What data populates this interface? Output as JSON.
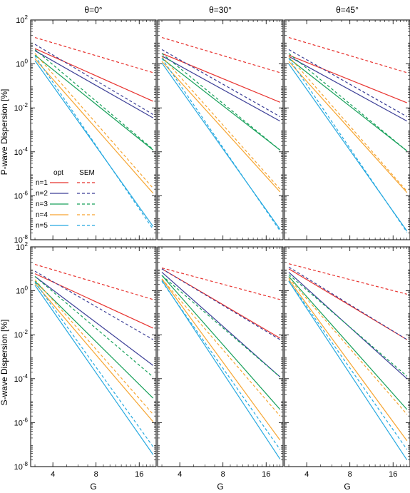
{
  "chart_data": {
    "type": "line",
    "scale": {
      "x": "log",
      "y": "log"
    },
    "xlim": [
      2.8,
      21
    ],
    "ylim": [
      1e-08,
      100
    ],
    "x_ticks": [
      4,
      8,
      16
    ],
    "x_tick_labels": [
      "4",
      "8",
      "16"
    ],
    "y_ticks": [
      {
        "value": 100,
        "base": "10",
        "exp": "2"
      },
      {
        "value": 1,
        "base": "10",
        "exp": "0"
      },
      {
        "value": 0.01,
        "base": "10",
        "exp": "-2"
      },
      {
        "value": 0.0001,
        "base": "10",
        "exp": "-4"
      },
      {
        "value": 1e-06,
        "base": "10",
        "exp": "-6"
      },
      {
        "value": 1e-08,
        "base": "10",
        "exp": "-8"
      }
    ],
    "column_titles": [
      "θ=0°",
      "θ=30°",
      "θ=45°"
    ],
    "row_ylabels": [
      "P-wave Dispersion [%]",
      "S-wave Dispersion [%]"
    ],
    "xlabel": "G",
    "legend": {
      "placement": "lower-left of top-left panel",
      "headers": [
        "opt",
        "SEM"
      ],
      "rows": [
        "n=1",
        "n=2",
        "n=3",
        "n=4",
        "n=5"
      ]
    },
    "series_colors": [
      "#e8332f",
      "#3c3f97",
      "#17a05a",
      "#f6a531",
      "#26a9e0"
    ],
    "x_endpoints": [
      3,
      20
    ],
    "panels": [
      {
        "row": 0,
        "col": 0,
        "opt": [
          [
            5,
            0.02
          ],
          [
            4,
            0.0035
          ],
          [
            2.5,
            0.00012
          ],
          [
            1.7,
            1.3e-06
          ],
          [
            1.4,
            4e-08
          ]
        ],
        "sem": [
          [
            16,
            0.4
          ],
          [
            7.8,
            0.005
          ],
          [
            4.5,
            0.00013
          ],
          [
            3,
            2.2e-06
          ],
          [
            2.3,
            3e-08
          ]
        ]
      },
      {
        "row": 0,
        "col": 1,
        "opt": [
          [
            3,
            0.018
          ],
          [
            2.3,
            0.0025
          ],
          [
            1.8,
            0.00012
          ],
          [
            1.3,
            1.5e-06
          ],
          [
            1.1,
            3e-08
          ]
        ],
        "sem": [
          [
            16,
            0.4
          ],
          [
            4.5,
            0.004
          ],
          [
            3,
            0.00012
          ],
          [
            2.2,
            2e-06
          ],
          [
            1.8,
            2.5e-08
          ]
        ]
      },
      {
        "row": 0,
        "col": 2,
        "opt": [
          [
            2.5,
            0.017
          ],
          [
            2.2,
            0.0025
          ],
          [
            1.8,
            0.00011
          ],
          [
            1.3,
            1.4e-06
          ],
          [
            1,
            2.5e-08
          ]
        ],
        "sem": [
          [
            16,
            0.4
          ],
          [
            4.5,
            0.004
          ],
          [
            3,
            0.00011
          ],
          [
            2.2,
            1.6e-06
          ],
          [
            1.8,
            2.2e-08
          ]
        ]
      },
      {
        "row": 1,
        "col": 0,
        "opt": [
          [
            6,
            0.02
          ],
          [
            4.5,
            0.0004
          ],
          [
            2.7,
            1.3e-05
          ],
          [
            2.2,
            1.1e-06
          ],
          [
            1.8,
            3.5e-08
          ]
        ],
        "sem": [
          [
            16,
            0.4
          ],
          [
            7.8,
            0.006
          ],
          [
            4.5,
            0.00012
          ],
          [
            3.2,
            2.4e-06
          ],
          [
            2.5,
            8e-08
          ]
        ]
      },
      {
        "row": 1,
        "col": 1,
        "opt": [
          [
            10,
            0.007
          ],
          [
            7,
            0.00012
          ],
          [
            5,
            4e-06
          ],
          [
            3.5,
            1.6e-07
          ],
          [
            3,
            2.2e-08
          ]
        ],
        "sem": [
          [
            11,
            0.4
          ],
          [
            10,
            0.006
          ],
          [
            5,
            0.00012
          ],
          [
            3.5,
            2e-06
          ],
          [
            2.7,
            6e-08
          ]
        ]
      },
      {
        "row": 1,
        "col": 2,
        "opt": [
          [
            10,
            0.006
          ],
          [
            7,
            0.0001
          ],
          [
            4.5,
            4e-06
          ],
          [
            3.2,
            1.5e-07
          ],
          [
            2.7,
            2e-08
          ]
        ],
        "sem": [
          [
            17,
            0.7
          ],
          [
            12,
            0.006
          ],
          [
            5.5,
            0.00013
          ],
          [
            3.8,
            2.4e-06
          ],
          [
            2.8,
            6e-08
          ]
        ]
      }
    ]
  }
}
